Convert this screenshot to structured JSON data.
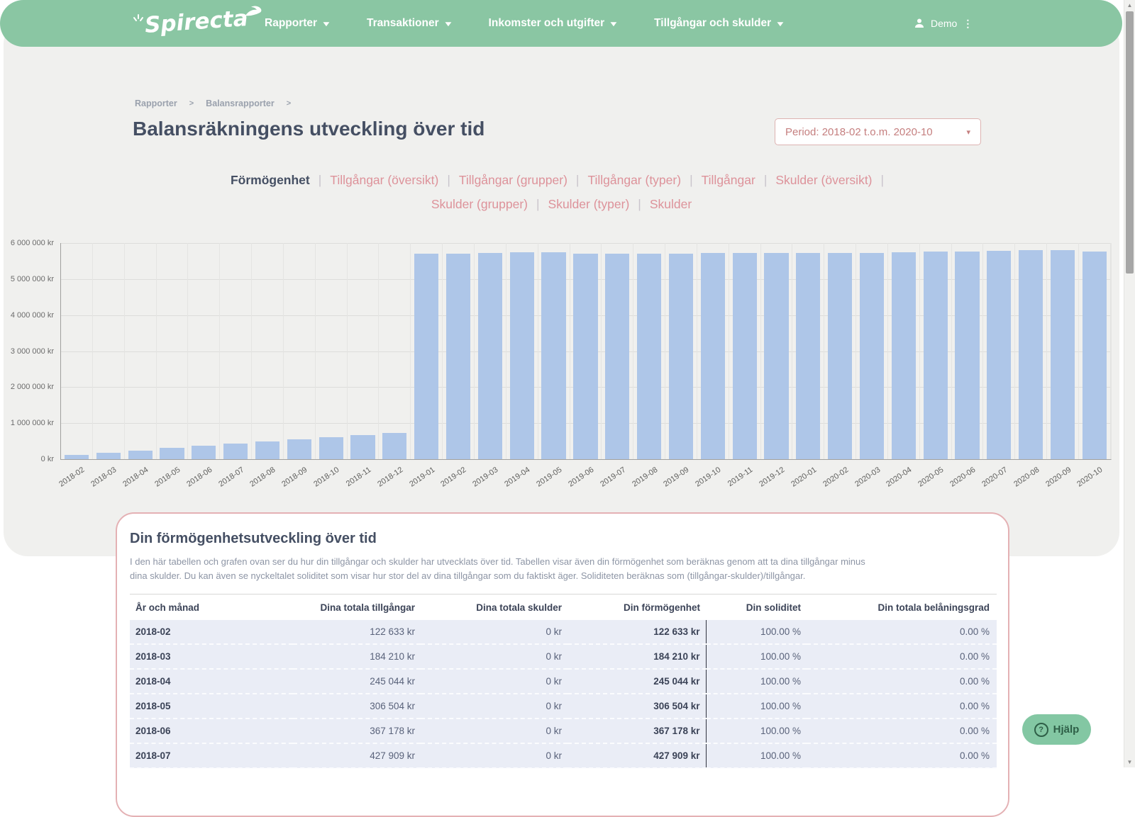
{
  "nav": {
    "logo": "Spirecta",
    "items": [
      {
        "label": "Rapporter"
      },
      {
        "label": "Transaktioner"
      },
      {
        "label": "Inkomster och utgifter"
      },
      {
        "label": "Tillgångar och skulder"
      }
    ],
    "user": {
      "name": "Demo"
    }
  },
  "icons": {
    "caret_down": "▼",
    "select_caret": "▾",
    "kebab": "⋮",
    "up_arrow": "▲",
    "down_arrow": "▼",
    "help_q": "?",
    "breadcrumb_chevron": ">"
  },
  "breadcrumb": {
    "items": [
      "Rapporter",
      "Balansrapporter"
    ]
  },
  "page": {
    "title": "Balansräkningens utveckling över tid"
  },
  "period_selector": {
    "value": "Period: 2018-02 t.o.m. 2020-10"
  },
  "tabs": {
    "active": "Förmögenhet",
    "separator": "|",
    "rows": [
      [
        "Förmögenhet",
        "Tillgångar (översikt)",
        "Tillgångar (grupper)",
        "Tillgångar (typer)",
        "Tillgångar",
        "Skulder (översikt)"
      ],
      [
        "Skulder (grupper)",
        "Skulder (typer)",
        "Skulder"
      ]
    ]
  },
  "chart_data": {
    "type": "bar",
    "title": "",
    "xlabel": "",
    "ylabel": "",
    "ylim": [
      0,
      6000000
    ],
    "grid": true,
    "legend": "none",
    "bar_color": "#aec6e8",
    "ytick_labels": [
      "6 000 000 kr",
      "5 000 000 kr",
      "4 000 000 kr",
      "3 000 000 kr",
      "2 000 000 kr",
      "1 000 000 kr",
      "0 kr"
    ],
    "categories": [
      "2018-02",
      "2018-03",
      "2018-04",
      "2018-05",
      "2018-06",
      "2018-07",
      "2018-08",
      "2018-09",
      "2018-10",
      "2018-11",
      "2018-12",
      "2019-01",
      "2019-02",
      "2019-03",
      "2019-04",
      "2019-05",
      "2019-06",
      "2019-07",
      "2019-08",
      "2019-09",
      "2019-10",
      "2019-11",
      "2019-12",
      "2020-01",
      "2020-02",
      "2020-03",
      "2020-04",
      "2020-05",
      "2020-06",
      "2020-07",
      "2020-08",
      "2020-09",
      "2020-10"
    ],
    "values": [
      122633,
      184210,
      245044,
      306504,
      367178,
      427909,
      489000,
      551000,
      612000,
      673000,
      734000,
      5710000,
      5715000,
      5725000,
      5735000,
      5750000,
      5705000,
      5710000,
      5712000,
      5704000,
      5718000,
      5728000,
      5722000,
      5724000,
      5716000,
      5722000,
      5742000,
      5756000,
      5772000,
      5788000,
      5798000,
      5808000,
      5765000
    ]
  },
  "card": {
    "title": "Din förmögenhetsutveckling över tid",
    "description_line1": "I den här tabellen och grafen ovan ser du hur din tillgångar och skulder har utvecklats över tid. Tabellen visar även din förmögenhet som beräknas genom att ta dina tillgångar minus",
    "description_line2": "dina skulder. Du kan även se nyckeltalet soliditet som visar hur stor del av dina tillgångar som du faktiskt äger. Soliditeten beräknas som (tillgångar-skulder)/tillgångar.",
    "table": {
      "headers": [
        "År och månad",
        "Dina totala tillgångar",
        "Dina totala skulder",
        "Din förmögenhet",
        "Din soliditet",
        "Din totala belåningsgrad"
      ],
      "rows": [
        [
          "2018-02",
          "122 633 kr",
          "0 kr",
          "122 633 kr",
          "100.00 %",
          "0.00 %"
        ],
        [
          "2018-03",
          "184 210 kr",
          "0 kr",
          "184 210 kr",
          "100.00 %",
          "0.00 %"
        ],
        [
          "2018-04",
          "245 044 kr",
          "0 kr",
          "245 044 kr",
          "100.00 %",
          "0.00 %"
        ],
        [
          "2018-05",
          "306 504 kr",
          "0 kr",
          "306 504 kr",
          "100.00 %",
          "0.00 %"
        ],
        [
          "2018-06",
          "367 178 kr",
          "0 kr",
          "367 178 kr",
          "100.00 %",
          "0.00 %"
        ],
        [
          "2018-07",
          "427 909 kr",
          "0 kr",
          "427 909 kr",
          "100.00 %",
          "0.00 %"
        ]
      ]
    }
  },
  "help_button": {
    "label": "Hjälp"
  },
  "colors": {
    "nav_green": "#8ac6a3",
    "panel_grey": "#f0f0ee",
    "bar_blue": "#aec6e8",
    "accent_rose": "#dd929a",
    "heading_dark": "#454f63",
    "row_lavender": "#eaedf6",
    "card_border_pink": "#e4b1b4",
    "help_green": "#83c7a3"
  }
}
